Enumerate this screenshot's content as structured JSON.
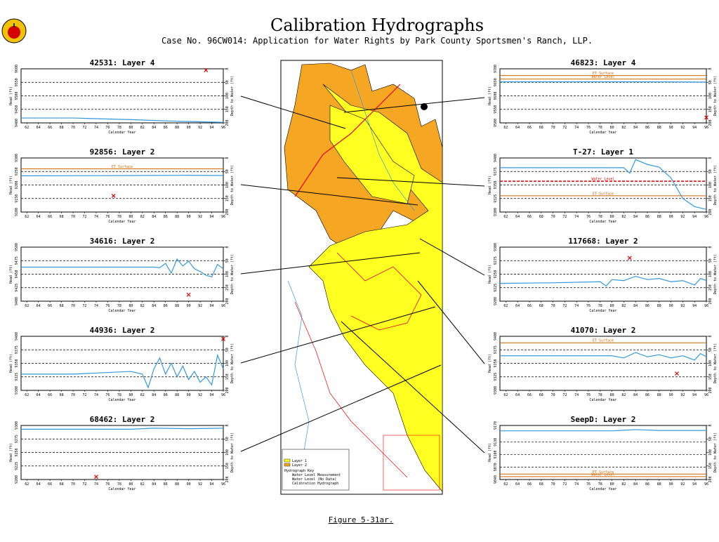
{
  "title": "Calibration Hydrographs",
  "subtitle": "Case No. 96CW014: Application for Water Rights by Park County Sportsmen's Ranch, LLP.",
  "figure_label": "Figure 5-31ar.",
  "map_legend": [
    "Layer 1",
    "Layer 2",
    "Hydrograph Key",
    "Water Level Measurement",
    "Water Level (No Data)",
    "Calibration Hydrograph"
  ],
  "chart_data": [
    {
      "type": "line",
      "title": "42531: Layer 4",
      "xlabel": "Calendar Year",
      "ylabel": "Head (ft)",
      "y2label": "Depth to Water (ft)",
      "xlim": [
        61,
        96
      ],
      "xticks": [
        62,
        64,
        66,
        68,
        70,
        72,
        74,
        76,
        78,
        80,
        82,
        84,
        86,
        88,
        90,
        92,
        94,
        96
      ],
      "ylim": [
        9400,
        9600
      ],
      "yticks": [
        9400,
        9450,
        9500,
        9550,
        9600
      ],
      "y2lim": [
        200,
        0
      ],
      "y2ticks": [
        0,
        50,
        100,
        150,
        200
      ],
      "reference_lines": [],
      "series": [
        {
          "name": "Calibration Hydrograph",
          "color": "#3399dd",
          "x": [
            61,
            70,
            80,
            88,
            96
          ],
          "values": [
            9418,
            9418,
            9412,
            9406,
            9402
          ]
        },
        {
          "name": "Water Level Measurement",
          "color": "#dd0000",
          "marker": "x",
          "x": [
            93
          ],
          "values": [
            9595
          ]
        }
      ]
    },
    {
      "type": "line",
      "title": "92856: Layer 2",
      "xlabel": "Calendar Year",
      "ylabel": "Head (ft)",
      "y2label": "Depth to Water (ft)",
      "xlim": [
        61,
        96
      ],
      "xticks": [
        62,
        64,
        66,
        68,
        70,
        72,
        74,
        76,
        78,
        80,
        82,
        84,
        86,
        88,
        90,
        92,
        94,
        96
      ],
      "ylim": [
        9100,
        9300
      ],
      "yticks": [
        9100,
        9150,
        9200,
        9250,
        9300
      ],
      "y2lim": [
        200,
        0
      ],
      "y2ticks": [
        0,
        50,
        100,
        150,
        200
      ],
      "reference_lines": [
        {
          "label": "ET Surface",
          "value": 9260,
          "color": "#cc6600",
          "dash": false
        }
      ],
      "series": [
        {
          "name": "Calibration Hydrograph",
          "color": "#3399dd",
          "x": [
            61,
            80,
            90,
            96
          ],
          "values": [
            9234,
            9235,
            9236,
            9235
          ]
        },
        {
          "name": "Water Level Measurement",
          "color": "#dd0000",
          "marker": "x",
          "x": [
            77
          ],
          "values": [
            9160
          ]
        }
      ]
    },
    {
      "type": "line",
      "title": "34616: Layer 2",
      "xlabel": "Calendar Year",
      "ylabel": "Head (ft)",
      "y2label": "Depth to Water (ft)",
      "xlim": [
        61,
        96
      ],
      "xticks": [
        62,
        64,
        66,
        68,
        70,
        72,
        74,
        76,
        78,
        80,
        82,
        84,
        86,
        88,
        90,
        92,
        94,
        96
      ],
      "ylim": [
        9400,
        9500
      ],
      "yticks": [
        9400,
        9425,
        9450,
        9475,
        9500
      ],
      "y2lim": [
        200,
        0
      ],
      "y2ticks": [
        0,
        50,
        100,
        150,
        200
      ],
      "reference_lines": [],
      "series": [
        {
          "name": "Calibration Hydrograph",
          "color": "#3399dd",
          "x": [
            61,
            84,
            85,
            86,
            87,
            88,
            89,
            90,
            91,
            92,
            93,
            94,
            95,
            96
          ],
          "values": [
            9463,
            9463,
            9462,
            9470,
            9452,
            9478,
            9465,
            9474,
            9460,
            9455,
            9448,
            9445,
            9468,
            9460
          ]
        },
        {
          "name": "Water Level Measurement",
          "color": "#dd0000",
          "marker": "x",
          "x": [
            90
          ],
          "values": [
            9412
          ]
        }
      ]
    },
    {
      "type": "line",
      "title": "44936: Layer 2",
      "xlabel": "Calendar Year",
      "ylabel": "Head (ft)",
      "y2label": "Depth to Water (ft)",
      "xlim": [
        61,
        96
      ],
      "xticks": [
        62,
        64,
        66,
        68,
        70,
        72,
        74,
        76,
        78,
        80,
        82,
        84,
        86,
        88,
        90,
        92,
        94,
        96
      ],
      "ylim": [
        9300,
        9400
      ],
      "yticks": [
        9300,
        9325,
        9350,
        9375,
        9400
      ],
      "y2lim": [
        200,
        0
      ],
      "y2ticks": [
        0,
        50,
        100,
        150,
        200
      ],
      "reference_lines": [],
      "series": [
        {
          "name": "Calibration Hydrograph",
          "color": "#3399dd",
          "x": [
            61,
            70,
            80,
            82,
            83,
            84,
            85,
            86,
            87,
            88,
            89,
            90,
            91,
            92,
            93,
            94,
            95,
            96
          ],
          "values": [
            9330,
            9330,
            9335,
            9330,
            9305,
            9340,
            9360,
            9330,
            9350,
            9325,
            9345,
            9320,
            9335,
            9315,
            9325,
            9310,
            9365,
            9340
          ]
        },
        {
          "name": "Water Level Measurement",
          "color": "#dd0000",
          "marker": "x",
          "x": [
            96
          ],
          "values": [
            9395
          ]
        }
      ]
    },
    {
      "type": "line",
      "title": "68462: Layer 2",
      "xlabel": "Calendar Year",
      "ylabel": "Head (ft)",
      "y2label": "Depth to Water (ft)",
      "xlim": [
        61,
        96
      ],
      "xticks": [
        62,
        64,
        66,
        68,
        70,
        72,
        74,
        76,
        78,
        80,
        82,
        84,
        86,
        88,
        90,
        92,
        94,
        96
      ],
      "ylim": [
        9200,
        9300
      ],
      "yticks": [
        9200,
        9225,
        9250,
        9275,
        9300
      ],
      "y2lim": [
        200,
        0
      ],
      "y2ticks": [
        0,
        50,
        100,
        150,
        200
      ],
      "reference_lines": [],
      "series": [
        {
          "name": "Calibration Hydrograph",
          "color": "#3399dd",
          "x": [
            61,
            80,
            84,
            90,
            96
          ],
          "values": [
            9293,
            9293,
            9295,
            9294,
            9295
          ]
        },
        {
          "name": "Water Level Measurement",
          "color": "#dd0000",
          "marker": "x",
          "x": [
            74
          ],
          "values": [
            9205
          ]
        }
      ]
    },
    {
      "type": "line",
      "title": "46823: Layer 4",
      "xlabel": "Calendar Year",
      "ylabel": "Head (ft)",
      "y2label": "Depth to Water (ft)",
      "xlim": [
        61,
        96
      ],
      "xticks": [
        62,
        64,
        66,
        68,
        70,
        72,
        74,
        76,
        78,
        80,
        82,
        84,
        86,
        88,
        90,
        92,
        94,
        96
      ],
      "ylim": [
        9500,
        9700
      ],
      "yticks": [
        9500,
        9550,
        9600,
        9650,
        9700
      ],
      "y2lim": [
        200,
        0
      ],
      "y2ticks": [
        0,
        50,
        100,
        150,
        200
      ],
      "reference_lines": [
        {
          "label": "ET Surface",
          "value": 9675,
          "color": "#cc6600",
          "dash": false
        },
        {
          "label": "Water Level",
          "value": 9662,
          "color": "#cc6600",
          "dash": false
        }
      ],
      "series": [
        {
          "name": "Calibration Hydrograph",
          "color": "#3399dd",
          "x": [
            61,
            80,
            96
          ],
          "values": [
            9652,
            9652,
            9651
          ]
        },
        {
          "name": "Water Level Measurement",
          "color": "#dd0000",
          "marker": "x",
          "x": [
            96
          ],
          "values": [
            9520
          ]
        }
      ]
    },
    {
      "type": "line",
      "title": "T-27: Layer 1",
      "xlabel": "Calendar Year",
      "ylabel": "Head (ft)",
      "y2label": "Depth to Water (ft)",
      "xlim": [
        61,
        96
      ],
      "xticks": [
        62,
        64,
        66,
        68,
        70,
        72,
        74,
        76,
        78,
        80,
        82,
        84,
        86,
        88,
        90,
        92,
        94,
        96
      ],
      "ylim": [
        9300,
        9400
      ],
      "yticks": [
        9300,
        9325,
        9350,
        9375,
        9400
      ],
      "y2lim": [
        200,
        0
      ],
      "y2ticks": [
        0,
        50,
        100,
        150,
        200
      ],
      "reference_lines": [
        {
          "label": "Water Level",
          "value": 9357,
          "color": "#dd0000",
          "dash": true
        },
        {
          "label": "ET Surface",
          "value": 9330,
          "color": "#cc6600",
          "dash": false
        }
      ],
      "series": [
        {
          "name": "Calibration Hydrograph",
          "color": "#3399dd",
          "x": [
            61,
            70,
            80,
            82,
            83,
            84,
            86,
            88,
            90,
            92,
            94,
            96
          ],
          "values": [
            9382,
            9382,
            9382,
            9382,
            9372,
            9397,
            9388,
            9383,
            9363,
            9325,
            9310,
            9305
          ]
        }
      ]
    },
    {
      "type": "line",
      "title": "117668: Layer 2",
      "xlabel": "Calendar Year",
      "ylabel": "Head (ft)",
      "y2label": "Depth to Water (ft)",
      "xlim": [
        61,
        96
      ],
      "xticks": [
        62,
        64,
        66,
        68,
        70,
        72,
        74,
        76,
        78,
        80,
        82,
        84,
        86,
        88,
        90,
        92,
        94,
        96
      ],
      "ylim": [
        9200,
        9300
      ],
      "yticks": [
        9200,
        9225,
        9250,
        9275,
        9300
      ],
      "y2lim": [
        200,
        0
      ],
      "y2ticks": [
        0,
        50,
        100,
        150,
        200
      ],
      "reference_lines": [],
      "series": [
        {
          "name": "Calibration Hydrograph",
          "color": "#3399dd",
          "x": [
            61,
            70,
            78,
            79,
            80,
            82,
            84,
            86,
            88,
            90,
            92,
            94,
            95,
            96
          ],
          "values": [
            9233,
            9234,
            9236,
            9228,
            9240,
            9238,
            9246,
            9240,
            9242,
            9236,
            9238,
            9230,
            9242,
            9238
          ]
        },
        {
          "name": "Water Level Measurement",
          "color": "#dd0000",
          "marker": "x",
          "x": [
            83
          ],
          "values": [
            9280
          ]
        }
      ]
    },
    {
      "type": "line",
      "title": "41070: Layer 2",
      "xlabel": "Calendar Year",
      "ylabel": "Head (ft)",
      "y2label": "Depth to Water (ft)",
      "xlim": [
        61,
        96
      ],
      "xticks": [
        62,
        64,
        66,
        68,
        70,
        72,
        74,
        76,
        78,
        80,
        82,
        84,
        86,
        88,
        90,
        92,
        94,
        96
      ],
      "ylim": [
        9300,
        9400
      ],
      "yticks": [
        9300,
        9325,
        9350,
        9375,
        9400
      ],
      "y2lim": [
        200,
        0
      ],
      "y2ticks": [
        0,
        50,
        100,
        150,
        200
      ],
      "reference_lines": [
        {
          "label": "ET Surface",
          "value": 9388,
          "color": "#cc6600",
          "dash": false
        }
      ],
      "series": [
        {
          "name": "Calibration Hydrograph",
          "color": "#3399dd",
          "x": [
            61,
            80,
            82,
            84,
            86,
            88,
            90,
            92,
            94,
            95,
            96
          ],
          "values": [
            9364,
            9364,
            9360,
            9370,
            9362,
            9366,
            9360,
            9364,
            9356,
            9368,
            9362
          ]
        },
        {
          "name": "Water Level Measurement",
          "color": "#dd0000",
          "marker": "x",
          "x": [
            91
          ],
          "values": [
            9331
          ]
        }
      ]
    },
    {
      "type": "line",
      "title": "SeepD: Layer 2",
      "xlabel": "Calendar Year",
      "ylabel": "Head (ft)",
      "y2label": "Depth to Water (ft)",
      "xlim": [
        61,
        96
      ],
      "xticks": [
        62,
        64,
        66,
        68,
        70,
        72,
        74,
        76,
        78,
        80,
        82,
        84,
        86,
        88,
        90,
        92,
        94,
        96
      ],
      "ylim": [
        9040,
        9170
      ],
      "yticks": [
        9040,
        9070,
        9100,
        9130,
        9170
      ],
      "y2lim": [
        200,
        0
      ],
      "y2ticks": [
        0,
        50,
        100,
        150,
        200
      ],
      "reference_lines": [
        {
          "label": "ET Surface",
          "value": 9053,
          "color": "#cc6600",
          "dash": false
        },
        {
          "label": "Water Level",
          "value": 9047,
          "color": "#cc6600",
          "dash": false
        }
      ],
      "series": [
        {
          "name": "Calibration Hydrograph",
          "color": "#3399dd",
          "x": [
            61,
            80,
            84,
            88,
            96
          ],
          "values": [
            9157,
            9157,
            9160,
            9158,
            9158
          ]
        }
      ]
    }
  ]
}
